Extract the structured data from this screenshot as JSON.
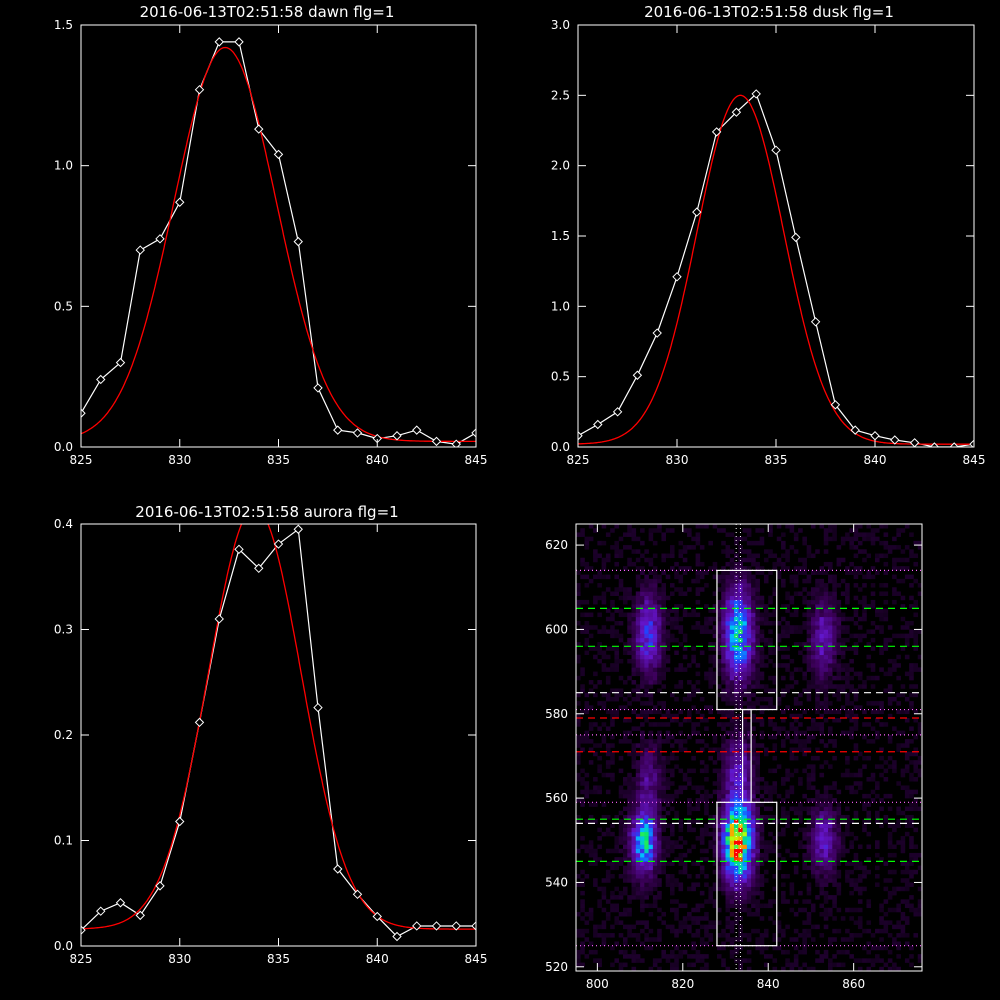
{
  "chart_data": [
    {
      "type": "line",
      "title": "2016-06-13T02:51:58 dawn flg=1",
      "xlim": [
        825,
        845
      ],
      "ylim": [
        0,
        1.5
      ],
      "xticks": [
        825,
        830,
        835,
        840,
        845
      ],
      "yticks": [
        0.0,
        0.5,
        1.0,
        1.5
      ],
      "ytick_labels": [
        "0.0",
        "0.5",
        "1.0",
        "1.5"
      ],
      "series": [
        {
          "color": "#ffffff",
          "marker": "diamond",
          "x": [
            825,
            826,
            827,
            828,
            829,
            830,
            831,
            832,
            833,
            834,
            835,
            836,
            837,
            838,
            839,
            840,
            841,
            842,
            843,
            844,
            845
          ],
          "y": [
            0.12,
            0.24,
            0.3,
            0.7,
            0.74,
            0.87,
            1.27,
            1.44,
            1.44,
            1.13,
            1.04,
            0.73,
            0.21,
            0.06,
            0.05,
            0.03,
            0.04,
            0.06,
            0.02,
            0.01,
            0.05
          ]
        },
        {
          "color": "#ff0000",
          "fit": "gaussian",
          "amplitude": 1.4,
          "center": 832.3,
          "sigma": 2.6,
          "baseline": 0.02
        }
      ]
    },
    {
      "type": "line",
      "title": "2016-06-13T02:51:58 dusk flg=1",
      "xlim": [
        825,
        845
      ],
      "ylim": [
        0,
        3.0
      ],
      "xticks": [
        825,
        830,
        835,
        840,
        845
      ],
      "yticks": [
        0.0,
        0.5,
        1.0,
        1.5,
        2.0,
        2.5,
        3.0
      ],
      "ytick_labels": [
        "0.0",
        "0.5",
        "1.0",
        "1.5",
        "2.0",
        "2.5",
        "3.0"
      ],
      "series": [
        {
          "color": "#ffffff",
          "marker": "diamond",
          "x": [
            825,
            826,
            827,
            828,
            829,
            830,
            831,
            832,
            833,
            834,
            835,
            836,
            837,
            838,
            839,
            840,
            841,
            842,
            843,
            844,
            845
          ],
          "y": [
            0.08,
            0.16,
            0.25,
            0.51,
            0.81,
            1.21,
            1.67,
            2.24,
            2.38,
            2.51,
            2.11,
            1.49,
            0.89,
            0.3,
            0.12,
            0.08,
            0.05,
            0.03,
            0.0,
            0.0,
            0.02
          ]
        },
        {
          "color": "#ff0000",
          "fit": "gaussian",
          "amplitude": 2.48,
          "center": 833.2,
          "sigma": 2.2,
          "baseline": 0.02
        }
      ]
    },
    {
      "type": "line",
      "title": "2016-06-13T02:51:58 aurora flg=1",
      "xlim": [
        825,
        845
      ],
      "ylim": [
        0,
        0.4
      ],
      "xticks": [
        825,
        830,
        835,
        840,
        845
      ],
      "yticks": [
        0.0,
        0.1,
        0.2,
        0.3,
        0.4
      ],
      "ytick_labels": [
        "0.0",
        "0.1",
        "0.2",
        "0.3",
        "0.4"
      ],
      "series": [
        {
          "color": "#ffffff",
          "marker": "diamond",
          "x": [
            825,
            826,
            827,
            828,
            829,
            830,
            831,
            832,
            833,
            834,
            835,
            836,
            837,
            838,
            839,
            840,
            841,
            842,
            843,
            844,
            845
          ],
          "y": [
            0.015,
            0.033,
            0.041,
            0.029,
            0.057,
            0.118,
            0.212,
            0.31,
            0.376,
            0.358,
            0.381,
            0.395,
            0.226,
            0.073,
            0.049,
            0.028,
            0.009,
            0.019,
            0.019,
            0.019,
            0.019
          ]
        },
        {
          "color": "#ff0000",
          "fit": "gaussian",
          "amplitude": 0.4,
          "center": 833.8,
          "sigma": 2.35,
          "baseline": 0.016
        }
      ]
    },
    {
      "type": "heatmap",
      "title": "",
      "xlim": [
        795,
        876
      ],
      "ylim": [
        519,
        625
      ],
      "xticks": [
        800,
        820,
        840,
        860
      ],
      "yticks": [
        520,
        540,
        560,
        580,
        600,
        620
      ],
      "colormap": "rainbow",
      "blobs": [
        {
          "x": 833,
          "y": 550,
          "sx": 2.2,
          "sy": 6,
          "amp": 1.0
        },
        {
          "x": 833,
          "y": 599,
          "sx": 2.2,
          "sy": 7,
          "amp": 0.55
        },
        {
          "x": 811,
          "y": 550,
          "sx": 2.0,
          "sy": 5,
          "amp": 0.55
        },
        {
          "x": 812,
          "y": 599,
          "sx": 2.0,
          "sy": 6,
          "amp": 0.33
        },
        {
          "x": 853,
          "y": 550,
          "sx": 2.0,
          "sy": 5,
          "amp": 0.25
        },
        {
          "x": 853,
          "y": 598,
          "sx": 2.0,
          "sy": 6,
          "amp": 0.22
        },
        {
          "x": 833,
          "y": 567,
          "sx": 2.2,
          "sy": 5,
          "amp": 0.22
        },
        {
          "x": 812,
          "y": 565,
          "sx": 2.0,
          "sy": 5,
          "amp": 0.16
        }
      ],
      "boxes": [
        {
          "x0": 828,
          "x1": 842,
          "y0": 581,
          "y1": 614,
          "color": "#ffffff"
        },
        {
          "x0": 828,
          "x1": 842,
          "y0": 525,
          "y1": 559,
          "color": "#ffffff"
        }
      ],
      "connector": {
        "x0": 834,
        "x1": 836,
        "y0": 559,
        "y1": 581,
        "color": "#ffffff"
      },
      "hlines": [
        {
          "y": 605,
          "color": "#00ff00",
          "style": "dashed"
        },
        {
          "y": 596,
          "color": "#00ff00",
          "style": "dashed"
        },
        {
          "y": 555,
          "color": "#00ff00",
          "style": "dashed"
        },
        {
          "y": 545,
          "color": "#00ff00",
          "style": "dashed"
        },
        {
          "y": 585,
          "color": "#ffffff",
          "style": "dashed"
        },
        {
          "y": 554,
          "color": "#ffffff",
          "style": "dashed"
        },
        {
          "y": 579,
          "color": "#ff0000",
          "style": "dashed"
        },
        {
          "y": 571,
          "color": "#ff0000",
          "style": "dashed"
        },
        {
          "y": 614,
          "color": "#ff66ff",
          "style": "dotted"
        },
        {
          "y": 581,
          "color": "#ff66ff",
          "style": "dotted"
        },
        {
          "y": 575,
          "color": "#ff66ff",
          "style": "dotted"
        },
        {
          "y": 559,
          "color": "#ff66ff",
          "style": "dotted"
        },
        {
          "y": 525,
          "color": "#ff66ff",
          "style": "dotted"
        }
      ],
      "vlines": [
        {
          "x": 832.5,
          "color": "#ffffff",
          "style": "dotted"
        },
        {
          "x": 833.5,
          "color": "#ffffff",
          "style": "dotted"
        }
      ]
    }
  ]
}
